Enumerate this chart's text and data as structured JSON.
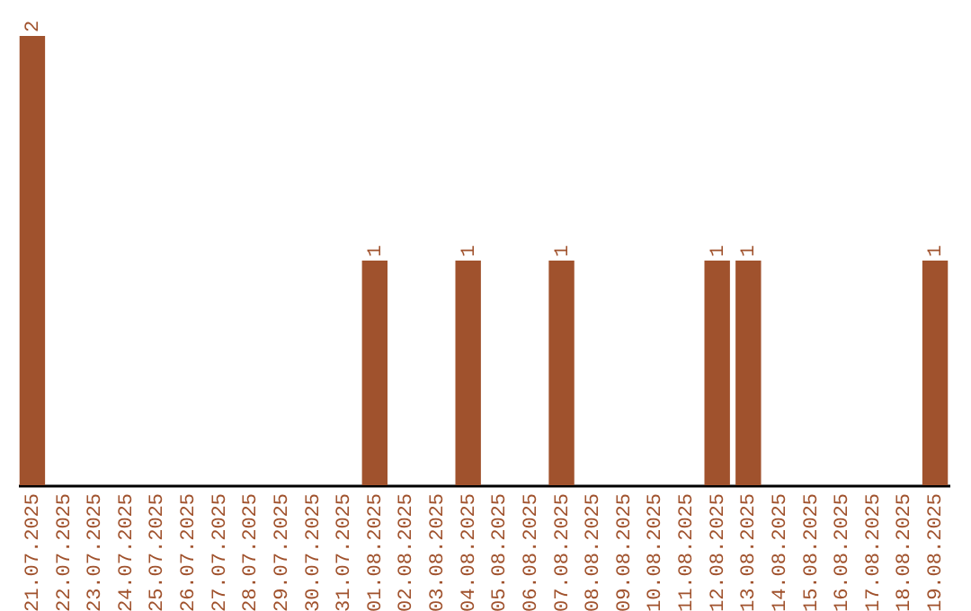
{
  "chart_data": {
    "type": "bar",
    "categories": [
      "21.07.2025",
      "22.07.2025",
      "23.07.2025",
      "24.07.2025",
      "25.07.2025",
      "26.07.2025",
      "27.07.2025",
      "28.07.2025",
      "29.07.2025",
      "30.07.2025",
      "31.07.2025",
      "01.08.2025",
      "02.08.2025",
      "03.08.2025",
      "04.08.2025",
      "05.08.2025",
      "06.08.2025",
      "07.08.2025",
      "08.08.2025",
      "09.08.2025",
      "10.08.2025",
      "11.08.2025",
      "12.08.2025",
      "13.08.2025",
      "14.08.2025",
      "15.08.2025",
      "16.08.2025",
      "17.08.2025",
      "18.08.2025",
      "19.08.2025"
    ],
    "values": [
      2,
      0,
      0,
      0,
      0,
      0,
      0,
      0,
      0,
      0,
      0,
      1,
      0,
      0,
      1,
      0,
      0,
      1,
      0,
      0,
      0,
      0,
      1,
      1,
      0,
      0,
      0,
      0,
      0,
      1
    ],
    "value_labels": [
      "2",
      null,
      null,
      null,
      null,
      null,
      null,
      null,
      null,
      null,
      null,
      "1",
      null,
      null,
      "1",
      null,
      null,
      "1",
      null,
      null,
      null,
      null,
      "1",
      "1",
      null,
      null,
      null,
      null,
      null,
      "1"
    ],
    "color": "#a0522d",
    "ylim": [
      0,
      2
    ],
    "grid": false
  }
}
